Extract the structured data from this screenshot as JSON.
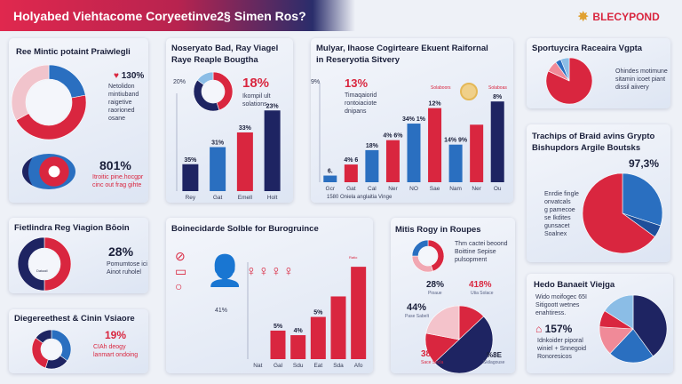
{
  "header": {
    "title": "Holyabed Viehtacome Coryeetinve2§ Simen Ros?",
    "logo": "BLECYPOND"
  },
  "colors": {
    "red": "#d9263f",
    "navy": "#1e2462",
    "blue": "#2a6fc0",
    "pink": "#f1a7b2",
    "lightblue": "#8bbde6"
  },
  "panel1": {
    "title": "Ree Mintic potaint Praiwlegli",
    "stat1": "130%",
    "stat1_text": [
      "Netolidon",
      "mintiuband",
      "raigetive",
      "raorioned osane"
    ],
    "stat2": "801%",
    "stat2_text": [
      "Itroitic pine.hocgpr",
      "cinc out frag gihte"
    ],
    "donut": [
      {
        "value": 0.22,
        "color": "#2a6fc0"
      },
      {
        "value": 0.45,
        "color": "#d9263f"
      },
      {
        "value": 0.33,
        "color": "#f1c4cc"
      }
    ]
  },
  "panel2": {
    "title": [
      "Noseryato Bad, Ray Viagel",
      "Raye Reaple Bougtha"
    ],
    "axis_top": "20%",
    "stat": "18%",
    "stat_text": [
      "Ikompil ult",
      "solations"
    ],
    "donut": [
      {
        "value": 0.45,
        "color": "#d9263f"
      },
      {
        "value": 0.4,
        "color": "#1e2462"
      },
      {
        "value": 0.15,
        "color": "#8bbde6"
      }
    ],
    "chart_data": {
      "type": "bar",
      "categories": [
        "Rey",
        "Gat",
        "Emell",
        "Holt"
      ],
      "values": [
        5.5,
        9,
        12,
        16.5
      ],
      "labels": [
        "35%",
        "31%",
        "33%",
        "23%"
      ],
      "colors": [
        "#1e2462",
        "#2a6fc0",
        "#d9263f",
        "#1e2462"
      ],
      "ylim": [
        0,
        20
      ]
    }
  },
  "panel3": {
    "title": [
      "Mulyar, Ihaose Cogirteare Ekuent Raifornal",
      "in Reseryotia Sitvery"
    ],
    "axis_top": "9%",
    "stat": "13%",
    "stat_text": [
      "Timaqaiorid",
      "rontoiaciote",
      "dnipans"
    ],
    "xlabel": "1580 Oniela anglaitia Vinge",
    "tag1": "Solaboors",
    "tag2": "Solaboas",
    "chart_data": {
      "type": "bar",
      "categories": [
        "Gcr",
        "Gat",
        "Cal",
        "Ner",
        "NO",
        "Sae",
        "Nam",
        "Ner",
        "Ou"
      ],
      "values": [
        0.6,
        1.6,
        2.9,
        3.8,
        5.3,
        6.7,
        3.4,
        5.2,
        7.3
      ],
      "labels": [
        "6.",
        "4% 6",
        "18%",
        "4% 6%",
        "34% 1%",
        "12%",
        "14% 9%",
        "",
        "8%"
      ],
      "colors": [
        "#2a6fc0",
        "#d9263f",
        "#2a6fc0",
        "#d9263f",
        "#2a6fc0",
        "#d9263f",
        "#2a6fc0",
        "#d9263f",
        "#1e2462"
      ],
      "ylim": [
        0,
        9
      ]
    }
  },
  "panel4": {
    "title": "Sportuycira Raceaira Vgpta",
    "text": [
      "Ohindes motimune",
      "sitamin icoet piant",
      "dissil aiivery"
    ],
    "pie": [
      {
        "value": 0.82,
        "color": "#d9263f"
      },
      {
        "value": 0.08,
        "color": "#f08a98"
      },
      {
        "value": 0.04,
        "color": "#2a6fc0"
      },
      {
        "value": 0.06,
        "color": "#8bbde6"
      }
    ]
  },
  "panel5": {
    "title": [
      "Trachips of Braid avins Grypto",
      "Bishupdors Argile Boutsks"
    ],
    "stat": "97,3%",
    "text": [
      "Enrdie fingle",
      "onvatcals",
      "g pamecoe",
      "se Ikdites",
      "gunsacet",
      "Soalnex"
    ],
    "pie": [
      {
        "value": 0.3,
        "color": "#2a6fc0"
      },
      {
        "value": 0.05,
        "color": "#1e4f9a"
      },
      {
        "value": 0.65,
        "color": "#d9263f"
      }
    ]
  },
  "panel6": {
    "title": "Fietlindra Reg Viagion Bōoin",
    "stat": "28%",
    "text": [
      "Pomumtose ici",
      "Ainot ruholel"
    ],
    "center_label": "Dataail",
    "donut": [
      {
        "value": 0.5,
        "color": "#d9263f"
      },
      {
        "value": 0.5,
        "color": "#1e2462"
      }
    ]
  },
  "panel7": {
    "title": "Diegereethest & Cinin Vsiaore",
    "stat": "19%",
    "text": [
      "CIAh deogy",
      "lanmart ondoing"
    ],
    "donut": [
      {
        "value": 0.35,
        "color": "#2a6fc0"
      },
      {
        "value": 0.2,
        "color": "#1e2462"
      },
      {
        "value": 0.3,
        "color": "#d9263f"
      },
      {
        "value": 0.15,
        "color": "#1e2462"
      }
    ]
  },
  "panel8": {
    "title": "Boinecidarde Solble for Burogruince",
    "left_stat": "41%",
    "top_label": "Ratio",
    "chart_data": {
      "type": "bar",
      "categories": [
        "Nat",
        "Gal",
        "Sdu",
        "Eat",
        "Sda",
        "Afo"
      ],
      "values": [
        0,
        25,
        21,
        37,
        55,
        81
      ],
      "labels": [
        "",
        "5%",
        "4%",
        "5%",
        "",
        ""
      ],
      "colors": [
        "#d9263f",
        "#d9263f",
        "#d9263f",
        "#d9263f",
        "#d9263f",
        "#d9263f"
      ],
      "ylim": [
        0,
        85
      ]
    }
  },
  "panel9": {
    "title": "Mitis Rogy in Roupes",
    "text": [
      "Thm cactei beoond",
      "Boittine Sepise",
      "pulsopment"
    ],
    "labels": [
      {
        "v": "28%",
        "s": "Pioaue"
      },
      {
        "v": "418%",
        "s": "Utia Solace"
      },
      {
        "v": "44%",
        "s": "Pase Sabelt"
      },
      {
        "v": "38%",
        "s": "Sace Secla"
      },
      {
        "v": "%8E",
        "s": "Skilagouse"
      }
    ],
    "small_donut": [
      {
        "value": 0.45,
        "color": "#d9263f"
      },
      {
        "value": 0.3,
        "color": "#f1a7b2"
      },
      {
        "value": 0.25,
        "color": "#2a6fc0"
      }
    ],
    "pie": [
      {
        "value": 0.13,
        "color": "#d9263f"
      },
      {
        "value": 0.5,
        "color": "#1e2462"
      },
      {
        "value": 0.15,
        "color": "#d9263f"
      },
      {
        "value": 0.22,
        "color": "#f4c3cb"
      }
    ]
  },
  "panel10": {
    "title": "Hedo Banaeit Viejga",
    "text": [
      "Wido moifogec 65I",
      "Sitigoott wetnes",
      "enahtiress."
    ],
    "stat": "157%",
    "stat_text": [
      "Idnkoider piporal",
      "winiel + Snnegoid",
      "Ronoresicos"
    ],
    "pie": [
      {
        "value": 0.4,
        "color": "#1e2462"
      },
      {
        "value": 0.22,
        "color": "#2a6fc0"
      },
      {
        "value": 0.14,
        "color": "#f08a98"
      },
      {
        "value": 0.08,
        "color": "#d9263f"
      },
      {
        "value": 0.16,
        "color": "#8bbde6"
      }
    ]
  }
}
